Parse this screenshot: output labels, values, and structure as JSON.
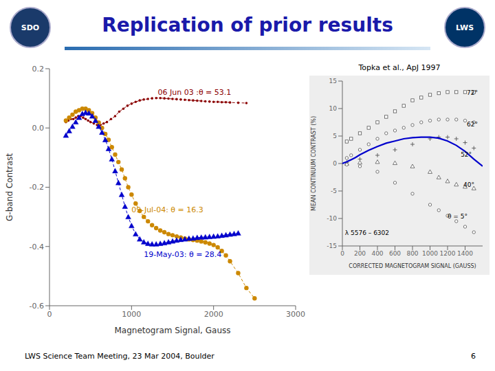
{
  "chart_data": [
    {
      "type": "line",
      "title": "Replication of prior results",
      "x_label": "Magnetogram Signal, Gauss",
      "y_label": "G-band Contrast",
      "xlim": [
        0,
        3000
      ],
      "ylim": [
        -0.6,
        0.2
      ],
      "xticks": [
        0,
        1000,
        2000,
        3000
      ],
      "yticks": [
        -0.6,
        -0.4,
        -0.2,
        {
          "value": 0,
          "label": "0.0"
        },
        0.2
      ],
      "grid": false,
      "series": [
        {
          "color": "#8b0000",
          "marker": "point",
          "line_style": "dashed",
          "x": [
            200,
            230,
            260,
            290,
            320,
            350,
            380,
            410,
            440,
            470,
            500,
            540,
            580,
            620,
            660,
            700,
            750,
            800,
            850,
            900,
            950,
            1000,
            1050,
            1100,
            1150,
            1200,
            1250,
            1300,
            1350,
            1400,
            1450,
            1500,
            1550,
            1600,
            1650,
            1700,
            1750,
            1800,
            1850,
            1900,
            1950,
            2000,
            2050,
            2100,
            2150,
            2200,
            2300,
            2400
          ],
          "values": [
            0.02,
            0.025,
            0.03,
            0.03,
            0.035,
            0.04,
            0.04,
            0.035,
            0.03,
            0.025,
            0.02,
            0.015,
            0.01,
            0.01,
            0.015,
            0.02,
            0.03,
            0.04,
            0.055,
            0.065,
            0.075,
            0.082,
            0.088,
            0.093,
            0.096,
            0.098,
            0.1,
            0.101,
            0.101,
            0.1,
            0.099,
            0.098,
            0.097,
            0.096,
            0.095,
            0.094,
            0.093,
            0.092,
            0.091,
            0.09,
            0.089,
            0.088,
            0.088,
            0.087,
            0.087,
            0.086,
            0.085,
            0.084
          ]
        },
        {
          "color": "#cc8800",
          "marker": "circle",
          "line_style": "dashed",
          "x": [
            200,
            240,
            280,
            320,
            360,
            400,
            440,
            480,
            520,
            560,
            600,
            640,
            680,
            720,
            760,
            800,
            840,
            880,
            920,
            960,
            1000,
            1050,
            1100,
            1150,
            1200,
            1250,
            1300,
            1350,
            1400,
            1450,
            1500,
            1550,
            1600,
            1650,
            1700,
            1750,
            1800,
            1850,
            1900,
            1950,
            2000,
            2050,
            2100,
            2150,
            2200,
            2300,
            2400,
            2500
          ],
          "values": [
            0.025,
            0.035,
            0.045,
            0.055,
            0.06,
            0.065,
            0.065,
            0.06,
            0.05,
            0.035,
            0.018,
            0.0,
            -0.02,
            -0.04,
            -0.065,
            -0.09,
            -0.115,
            -0.14,
            -0.17,
            -0.2,
            -0.225,
            -0.255,
            -0.28,
            -0.3,
            -0.315,
            -0.328,
            -0.338,
            -0.346,
            -0.352,
            -0.358,
            -0.362,
            -0.366,
            -0.37,
            -0.373,
            -0.376,
            -0.378,
            -0.38,
            -0.383,
            -0.386,
            -0.39,
            -0.395,
            -0.403,
            -0.415,
            -0.43,
            -0.45,
            -0.49,
            -0.54,
            -0.575
          ]
        },
        {
          "color": "#0000cc",
          "marker": "triangle",
          "line_style": "dashed",
          "x": [
            200,
            240,
            280,
            320,
            360,
            400,
            440,
            480,
            520,
            560,
            600,
            640,
            680,
            720,
            760,
            800,
            840,
            880,
            920,
            960,
            1000,
            1050,
            1100,
            1150,
            1200,
            1250,
            1300,
            1350,
            1400,
            1450,
            1500,
            1550,
            1600,
            1650,
            1700,
            1750,
            1800,
            1850,
            1900,
            1950,
            2000,
            2050,
            2100,
            2150,
            2200,
            2250,
            2300
          ],
          "values": [
            -0.025,
            -0.01,
            0.005,
            0.02,
            0.035,
            0.048,
            0.052,
            0.05,
            0.04,
            0.025,
            0.005,
            -0.015,
            -0.04,
            -0.07,
            -0.105,
            -0.145,
            -0.185,
            -0.225,
            -0.265,
            -0.3,
            -0.33,
            -0.358,
            -0.375,
            -0.385,
            -0.39,
            -0.392,
            -0.392,
            -0.39,
            -0.388,
            -0.385,
            -0.382,
            -0.379,
            -0.377,
            -0.375,
            -0.373,
            -0.372,
            -0.37,
            -0.369,
            -0.368,
            -0.367,
            -0.366,
            -0.365,
            -0.363,
            -0.361,
            -0.359,
            -0.357,
            -0.355
          ]
        }
      ],
      "annotations": [
        {
          "text": "06 Jun 03 :θ = 53.1",
          "x": 1320,
          "y": 0.112,
          "color": "#8b0000"
        },
        {
          "text": "09-Jul-04: θ = 16.3",
          "x": 1000,
          "y": -0.285,
          "color": "#cc8800"
        },
        {
          "text": "19-May-03: θ = 28.4",
          "x": 1150,
          "y": -0.435,
          "color": "#0000cc"
        },
        {
          "text": "SDO"
        },
        {
          "text": "LWS"
        },
        {
          "text": "LWS Science Team Meeting, 23 Mar 2004, Boulder"
        },
        {
          "text": "6"
        }
      ]
    },
    {
      "type": "scatter",
      "title": "Topka et al., ApJ 1997",
      "x_label": "CORRECTED MAGNETOGRAM SIGNAL (GAUSS)",
      "y_label": "MEAN CONTINUUM CONTRAST (%)",
      "xlim": [
        0,
        1600
      ],
      "ylim": [
        -15,
        15
      ],
      "xticks": [
        0,
        200,
        400,
        600,
        800,
        1000,
        1200,
        1400
      ],
      "yticks": [
        -15,
        -10,
        -5,
        0,
        5,
        10,
        15
      ],
      "grid": false,
      "series": [
        {
          "type": "scatter",
          "color": "#555555",
          "marker": "square",
          "line_style": "none",
          "x": [
            50,
            100,
            200,
            300,
            400,
            500,
            600,
            700,
            800,
            900,
            1000,
            1100,
            1200,
            1300,
            1400,
            1500
          ],
          "values": [
            4,
            4.5,
            5.5,
            6.5,
            7.5,
            8.5,
            9.5,
            10.5,
            11.5,
            12,
            12.5,
            12.8,
            13,
            13,
            13,
            13
          ]
        },
        {
          "type": "scatter",
          "color": "#555555",
          "marker": "circle",
          "line_style": "none",
          "x": [
            50,
            100,
            200,
            300,
            400,
            500,
            600,
            700,
            800,
            900,
            1000,
            1100,
            1200,
            1300,
            1400,
            1500
          ],
          "values": [
            1,
            1.5,
            2.5,
            3.5,
            4.5,
            5.5,
            6.0,
            6.5,
            7.0,
            7.5,
            7.8,
            8.0,
            8.0,
            8.0,
            7.8,
            7.5
          ]
        },
        {
          "type": "scatter",
          "color": "#555555",
          "marker": "plus",
          "line_style": "none",
          "x": [
            50,
            200,
            400,
            600,
            800,
            1000,
            1100,
            1200,
            1300,
            1400,
            1500
          ],
          "values": [
            0.2,
            0.8,
            1.5,
            2.5,
            3.5,
            4.5,
            4.8,
            4.8,
            4.5,
            3.8,
            2.8
          ]
        },
        {
          "type": "scatter",
          "color": "#555555",
          "marker": "triangle",
          "line_style": "none",
          "x": [
            50,
            200,
            400,
            600,
            800,
            1000,
            1100,
            1200,
            1300,
            1400,
            1500
          ],
          "values": [
            0.0,
            0.2,
            0.3,
            0.1,
            -0.5,
            -1.5,
            -2.5,
            -3.2,
            -3.8,
            -4.2,
            -4.5
          ]
        },
        {
          "type": "scatter",
          "color": "#555555",
          "marker": "circle",
          "line_style": "none",
          "x": [
            50,
            200,
            400,
            600,
            800,
            1000,
            1100,
            1200,
            1300,
            1400,
            1500
          ],
          "values": [
            -0.2,
            -0.5,
            -1.5,
            -3.5,
            -5.5,
            -7.5,
            -8.5,
            -9.5,
            -10.5,
            -11.5,
            -12.5
          ]
        },
        {
          "type": "line",
          "color": "#0000cc",
          "marker": "none",
          "line_style": "solid",
          "x": [
            0,
            50,
            100,
            150,
            200,
            300,
            400,
            500,
            600,
            700,
            800,
            900,
            1000,
            1100,
            1200,
            1300,
            1400,
            1500,
            1600
          ],
          "values": [
            0.0,
            0.3,
            0.7,
            1.1,
            1.6,
            2.4,
            3.1,
            3.7,
            4.1,
            4.5,
            4.7,
            4.8,
            4.8,
            4.6,
            4.1,
            3.3,
            2.2,
            0.8,
            -0.5
          ]
        }
      ],
      "annotations": [
        {
          "text": "72°",
          "x": 1420,
          "y": 12.5,
          "color": "#000000"
        },
        {
          "text": "62°",
          "x": 1420,
          "y": 6.8,
          "color": "#000000"
        },
        {
          "text": "52°",
          "x": 1350,
          "y": 1.2,
          "color": "#000000"
        },
        {
          "text": "40°",
          "x": 1380,
          "y": -4.2,
          "color": "#000000"
        },
        {
          "text": "θ = 5°",
          "x": 1200,
          "y": -10.0,
          "color": "#000000"
        },
        {
          "text": "λ 5576 – 6302",
          "x": 30,
          "y": -13,
          "color": "#000000"
        }
      ]
    }
  ]
}
